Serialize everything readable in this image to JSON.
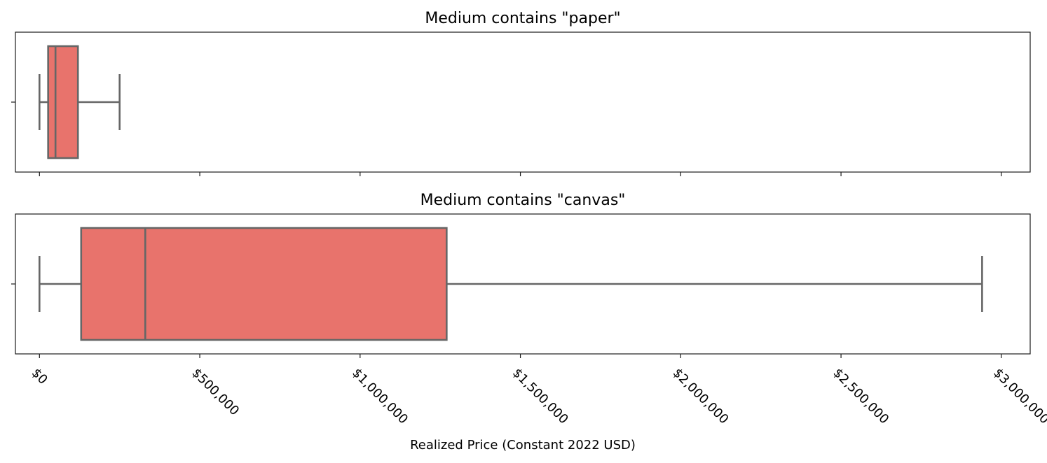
{
  "chart_data": [
    {
      "type": "box",
      "title": "Medium contains \"paper\"",
      "box": {
        "whisker_low": 0,
        "q1": 27000,
        "median": 50000,
        "q3": 120000,
        "whisker_high": 250000
      },
      "color": "#e8736c",
      "line_color": "#666666"
    },
    {
      "type": "box",
      "title": "Medium contains \"canvas\"",
      "box": {
        "whisker_low": 0,
        "q1": 130000,
        "median": 330000,
        "q3": 1270000,
        "whisker_high": 2940000
      },
      "color": "#e8736c",
      "line_color": "#666666"
    }
  ],
  "x_axis": {
    "label": "Realized Price (Constant 2022 USD)",
    "xlim": [
      -75000,
      3090000
    ],
    "ticks": [
      0,
      500000,
      1000000,
      1500000,
      2000000,
      2500000,
      3000000
    ],
    "tick_labels": [
      "$0",
      "$500,000",
      "$1,000,000",
      "$1,500,000",
      "$2,000,000",
      "$2,500,000",
      "$3,000,000"
    ],
    "shared": true
  }
}
